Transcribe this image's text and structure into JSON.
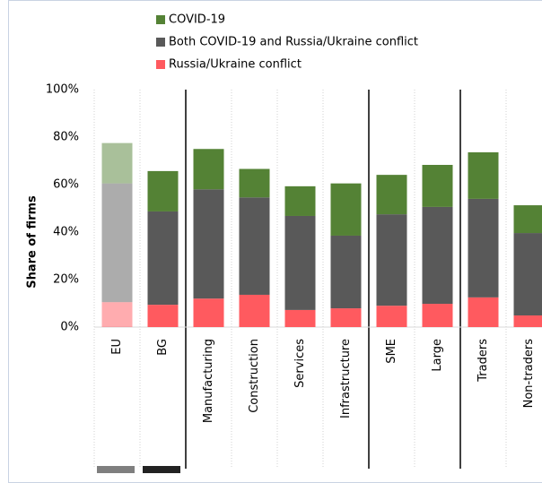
{
  "chart_data": {
    "type": "stacked_bar",
    "y_label": "Share of firms",
    "categories": [
      "EU",
      "BG",
      "Manufacturing",
      "Construction",
      "Services",
      "Infrastructure",
      "SME",
      "Large",
      "Traders",
      "Non-traders"
    ],
    "series": [
      {
        "name": "COVID-19",
        "color": "#548235",
        "values": [
          17,
          17,
          17,
          12,
          12.5,
          22,
          16.6,
          17.7,
          19.6,
          11.7
        ]
      },
      {
        "name": "Both COVID-19 and Russia/Ukraine conflict",
        "color": "#595959",
        "values": [
          50,
          39.3,
          46,
          41,
          39.6,
          30.6,
          38.5,
          40.8,
          41.5,
          34.7
        ]
      },
      {
        "name": "Russia/Ukraine conflict",
        "color": "#ff5a5f",
        "values": [
          10.5,
          9.4,
          12,
          13.6,
          7.2,
          7.9,
          9,
          9.8,
          12.5,
          4.9
        ]
      }
    ],
    "ylim": [
      0,
      100
    ],
    "yticks": [
      {
        "value": 0,
        "label": "0%"
      },
      {
        "value": 20,
        "label": "20%"
      },
      {
        "value": 40,
        "label": "40%"
      },
      {
        "value": 60,
        "label": "60%"
      },
      {
        "value": 80,
        "label": "80%"
      },
      {
        "value": 100,
        "label": "100%"
      }
    ]
  }
}
